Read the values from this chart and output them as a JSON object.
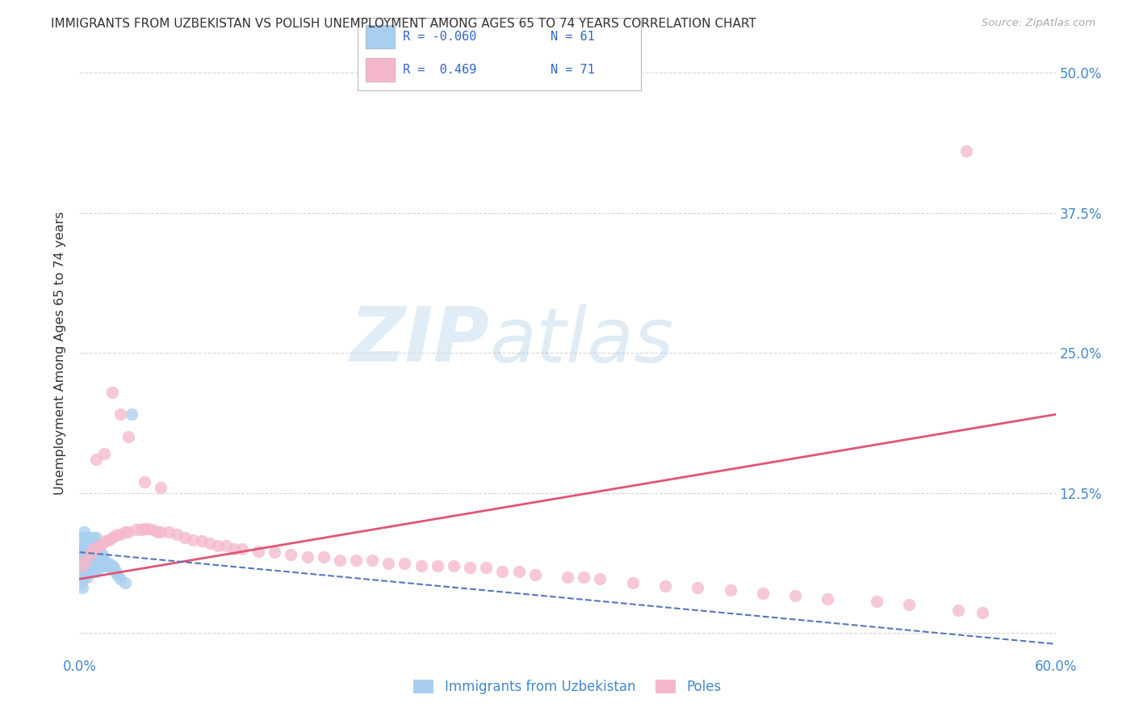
{
  "title": "IMMIGRANTS FROM UZBEKISTAN VS POLISH UNEMPLOYMENT AMONG AGES 65 TO 74 YEARS CORRELATION CHART",
  "source": "Source: ZipAtlas.com",
  "ylabel": "Unemployment Among Ages 65 to 74 years",
  "xlim": [
    0.0,
    0.6
  ],
  "ylim": [
    -0.02,
    0.52
  ],
  "blue_color": "#a8cef0",
  "pink_color": "#f5b8cb",
  "trend_blue_color": "#5577bb",
  "trend_pink_color": "#e05575",
  "blue_scatter_x": [
    0.001,
    0.001,
    0.001,
    0.001,
    0.002,
    0.002,
    0.002,
    0.002,
    0.002,
    0.003,
    0.003,
    0.003,
    0.003,
    0.003,
    0.004,
    0.004,
    0.004,
    0.004,
    0.005,
    0.005,
    0.005,
    0.005,
    0.006,
    0.006,
    0.006,
    0.006,
    0.007,
    0.007,
    0.007,
    0.008,
    0.008,
    0.008,
    0.008,
    0.009,
    0.009,
    0.009,
    0.01,
    0.01,
    0.01,
    0.01,
    0.011,
    0.011,
    0.012,
    0.012,
    0.013,
    0.013,
    0.014,
    0.014,
    0.015,
    0.015,
    0.016,
    0.017,
    0.018,
    0.019,
    0.02,
    0.021,
    0.022,
    0.023,
    0.025,
    0.028,
    0.032
  ],
  "blue_scatter_y": [
    0.045,
    0.06,
    0.07,
    0.08,
    0.04,
    0.055,
    0.065,
    0.075,
    0.085,
    0.05,
    0.06,
    0.07,
    0.08,
    0.09,
    0.055,
    0.065,
    0.075,
    0.085,
    0.05,
    0.06,
    0.07,
    0.08,
    0.055,
    0.065,
    0.075,
    0.085,
    0.058,
    0.068,
    0.078,
    0.055,
    0.065,
    0.075,
    0.085,
    0.06,
    0.07,
    0.08,
    0.055,
    0.065,
    0.075,
    0.085,
    0.06,
    0.07,
    0.058,
    0.068,
    0.06,
    0.07,
    0.06,
    0.07,
    0.06,
    0.065,
    0.062,
    0.06,
    0.062,
    0.058,
    0.06,
    0.058,
    0.055,
    0.052,
    0.048,
    0.045,
    0.195
  ],
  "pink_scatter_x": [
    0.002,
    0.004,
    0.006,
    0.008,
    0.01,
    0.012,
    0.014,
    0.016,
    0.018,
    0.02,
    0.022,
    0.025,
    0.028,
    0.03,
    0.035,
    0.038,
    0.04,
    0.042,
    0.045,
    0.048,
    0.05,
    0.055,
    0.06,
    0.065,
    0.07,
    0.075,
    0.08,
    0.085,
    0.09,
    0.095,
    0.1,
    0.11,
    0.12,
    0.13,
    0.14,
    0.15,
    0.16,
    0.17,
    0.18,
    0.19,
    0.2,
    0.21,
    0.22,
    0.23,
    0.24,
    0.25,
    0.26,
    0.27,
    0.28,
    0.3,
    0.31,
    0.32,
    0.34,
    0.36,
    0.38,
    0.4,
    0.42,
    0.44,
    0.46,
    0.49,
    0.51,
    0.54,
    0.555,
    0.01,
    0.015,
    0.02,
    0.025,
    0.03,
    0.04,
    0.05,
    0.545
  ],
  "pink_scatter_y": [
    0.06,
    0.065,
    0.07,
    0.075,
    0.075,
    0.078,
    0.08,
    0.082,
    0.083,
    0.085,
    0.087,
    0.088,
    0.09,
    0.09,
    0.092,
    0.092,
    0.093,
    0.093,
    0.092,
    0.09,
    0.09,
    0.09,
    0.088,
    0.085,
    0.083,
    0.082,
    0.08,
    0.078,
    0.078,
    0.075,
    0.075,
    0.073,
    0.072,
    0.07,
    0.068,
    0.068,
    0.065,
    0.065,
    0.065,
    0.062,
    0.062,
    0.06,
    0.06,
    0.06,
    0.058,
    0.058,
    0.055,
    0.055,
    0.052,
    0.05,
    0.05,
    0.048,
    0.045,
    0.042,
    0.04,
    0.038,
    0.035,
    0.033,
    0.03,
    0.028,
    0.025,
    0.02,
    0.018,
    0.155,
    0.16,
    0.215,
    0.195,
    0.175,
    0.135,
    0.13,
    0.43
  ],
  "pink_trend_start_y": 0.048,
  "pink_trend_end_y": 0.195,
  "blue_trend_start_y": 0.072,
  "blue_trend_end_y": -0.01,
  "watermark_zip": "ZIP",
  "watermark_atlas": "atlas",
  "legend_items": [
    {
      "color": "#a8cef0",
      "r": "R = -0.060",
      "n": "N = 61"
    },
    {
      "color": "#f5b8cb",
      "r": "R =  0.469",
      "n": "N = 71"
    }
  ],
  "bottom_legend": [
    "Immigrants from Uzbekistan",
    "Poles"
  ]
}
